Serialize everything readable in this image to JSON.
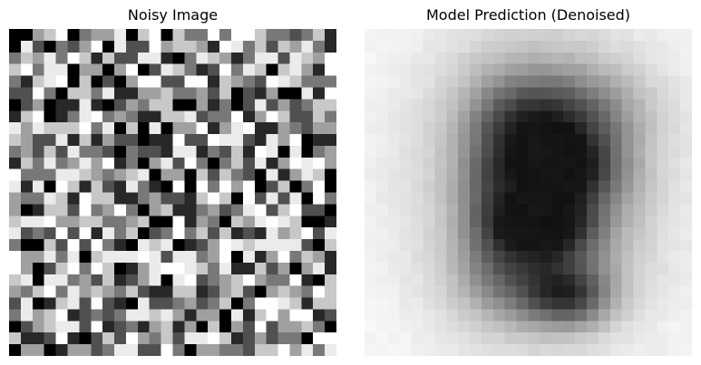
{
  "figure": {
    "panels": [
      {
        "title": "Noisy Image",
        "image_kind": "random grayscale noise",
        "grid_size": 28
      },
      {
        "title": "Model Prediction (Denoised)",
        "image_kind": "blurry grayscale digit-like shape",
        "grid_size": 28
      }
    ],
    "colors": {
      "background": "#ffffff",
      "text": "#000000"
    }
  }
}
